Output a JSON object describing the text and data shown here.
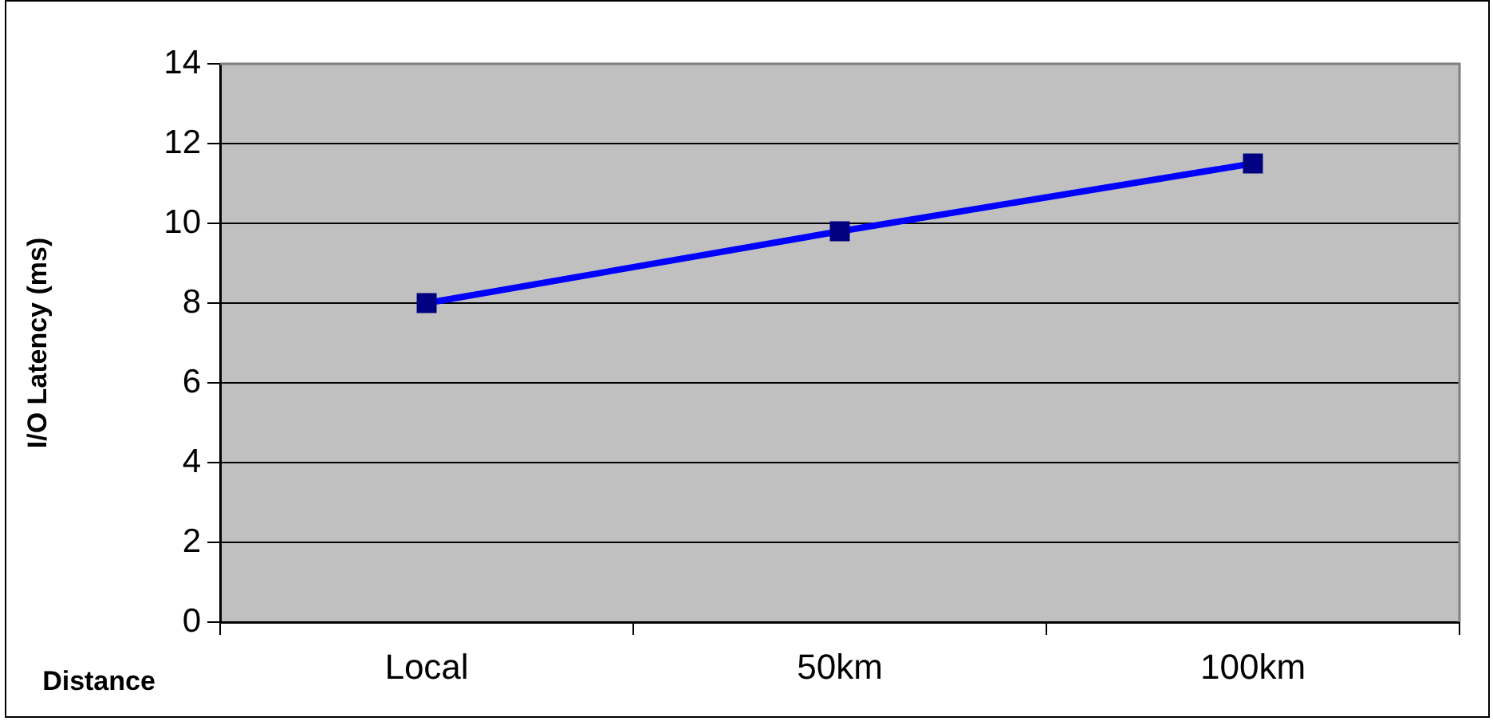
{
  "chart_data": {
    "type": "line",
    "xlabel": "Distance",
    "ylabel": "I/O Latency (ms)",
    "categories": [
      "Local",
      "50km",
      "100km"
    ],
    "series": [
      {
        "color": "#0000ff",
        "values": [
          8,
          9.8,
          11.5
        ]
      }
    ],
    "ylim": [
      0,
      14
    ],
    "yticks": [
      0,
      2,
      4,
      6,
      8,
      10,
      12,
      14
    ],
    "grid": "y",
    "legend": false,
    "marker": "square",
    "line_style": "solid"
  }
}
